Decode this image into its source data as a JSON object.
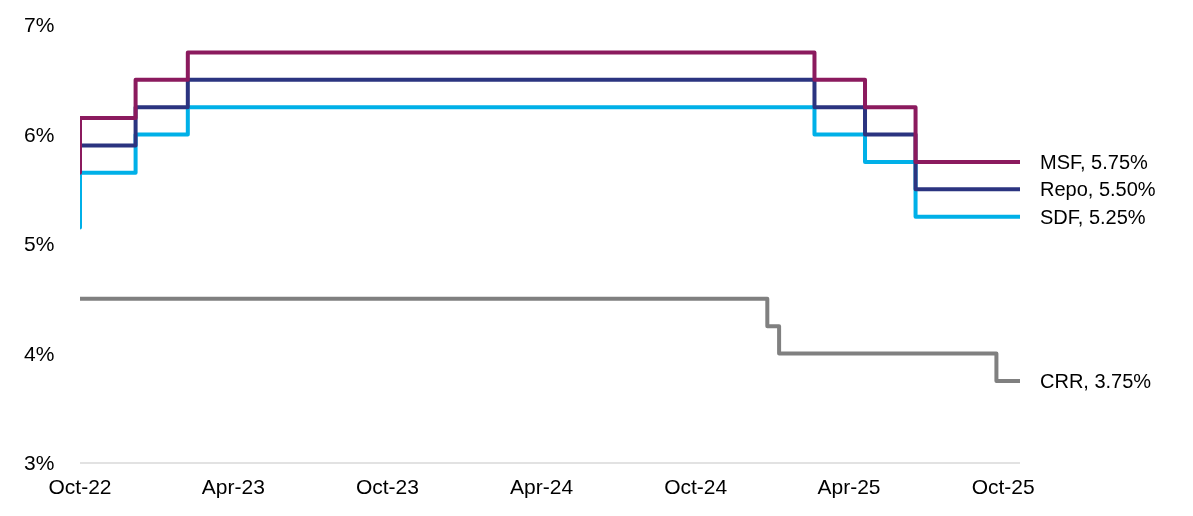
{
  "chart_data": {
    "type": "step",
    "ylim": [
      3,
      7
    ],
    "yticks": [
      {
        "value": 3,
        "label": "3%"
      },
      {
        "value": 4,
        "label": "4%"
      },
      {
        "value": 5,
        "label": "5%"
      },
      {
        "value": 6,
        "label": "6%"
      },
      {
        "value": 7,
        "label": "7%"
      }
    ],
    "xlim": [
      "2022-10-01",
      "2025-10-21"
    ],
    "xticks": [
      {
        "value": "2022-10",
        "label": "Oct-22"
      },
      {
        "value": "2023-04",
        "label": "Apr-23"
      },
      {
        "value": "2023-10",
        "label": "Oct-23"
      },
      {
        "value": "2024-04",
        "label": "Apr-24"
      },
      {
        "value": "2024-10",
        "label": "Oct-24"
      },
      {
        "value": "2025-04",
        "label": "Apr-25"
      },
      {
        "value": "2025-10",
        "label": "Oct-25"
      }
    ],
    "grid": false,
    "marker": "none",
    "line_style": "solid",
    "annotations": [
      {
        "text": "MSF, 5.75%",
        "x": "2025-10-21",
        "y": 5.75
      },
      {
        "text": "Repo, 5.50%",
        "x": "2025-10-21",
        "y": 5.5
      },
      {
        "text": "SDF, 5.25%",
        "x": "2025-10-21",
        "y": 5.25
      },
      {
        "text": "CRR, 3.75%",
        "x": "2025-10-21",
        "y": 3.75
      }
    ],
    "series": [
      {
        "color": "#8b1a5e",
        "x": [
          "2022-10-01",
          "2022-10-01",
          "2022-12-06",
          "2023-02-06",
          "2025-02-19",
          "2025-04-20",
          "2025-06-19",
          "2025-10-21"
        ],
        "values": [
          5.65,
          6.15,
          6.5,
          6.75,
          6.5,
          6.25,
          5.75,
          5.75
        ]
      },
      {
        "color": "#2b3480",
        "x": [
          "2022-10-01",
          "2022-12-06",
          "2023-02-06",
          "2025-02-19",
          "2025-04-20",
          "2025-06-19",
          "2025-10-21"
        ],
        "values": [
          5.9,
          6.25,
          6.5,
          6.25,
          6.0,
          5.5,
          5.5
        ]
      },
      {
        "color": "#00b0e8",
        "x": [
          "2022-10-01",
          "2022-10-01",
          "2022-12-06",
          "2023-02-06",
          "2025-02-19",
          "2025-04-20",
          "2025-06-19",
          "2025-10-21"
        ],
        "values": [
          5.15,
          5.65,
          6.0,
          6.25,
          6.0,
          5.75,
          5.25,
          5.25
        ]
      },
      {
        "color": "#808080",
        "x": [
          "2022-10-01",
          "2024-12-25",
          "2025-01-08",
          "2025-09-23",
          "2025-10-21"
        ],
        "values": [
          4.5,
          4.25,
          4.0,
          3.75,
          3.75
        ]
      }
    ]
  }
}
